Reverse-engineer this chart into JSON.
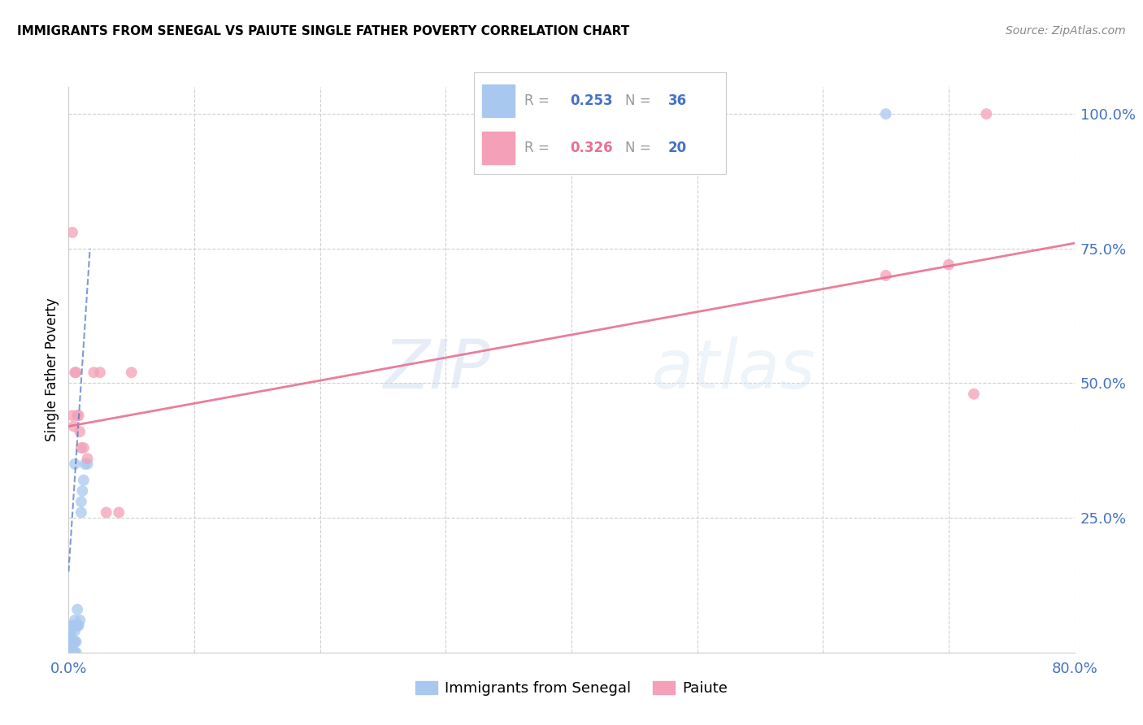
{
  "title": "IMMIGRANTS FROM SENEGAL VS PAIUTE SINGLE FATHER POVERTY CORRELATION CHART",
  "source": "Source: ZipAtlas.com",
  "ylabel": "Single Father Poverty",
  "color_blue": "#A8C8F0",
  "color_pink": "#F4A0B8",
  "color_blue_dark": "#4472C4",
  "color_pink_dark": "#E87090",
  "color_axis_labels": "#4472C4",
  "senegal_x": [
    0.0,
    0.0,
    0.0,
    0.0,
    0.0,
    0.002,
    0.002,
    0.002,
    0.002,
    0.002,
    0.003,
    0.003,
    0.003,
    0.003,
    0.004,
    0.004,
    0.004,
    0.005,
    0.005,
    0.005,
    0.005,
    0.006,
    0.006,
    0.006,
    0.007,
    0.007,
    0.008,
    0.009,
    0.01,
    0.01,
    0.011,
    0.012,
    0.013,
    0.015,
    0.65,
    0.005
  ],
  "senegal_y": [
    0.0,
    0.01,
    0.02,
    0.03,
    0.04,
    0.0,
    0.01,
    0.02,
    0.03,
    0.04,
    0.0,
    0.01,
    0.02,
    0.05,
    0.0,
    0.02,
    0.05,
    0.0,
    0.02,
    0.04,
    0.06,
    0.0,
    0.02,
    0.05,
    0.05,
    0.08,
    0.05,
    0.06,
    0.26,
    0.28,
    0.3,
    0.32,
    0.35,
    0.35,
    1.0,
    0.35
  ],
  "paiute_x": [
    0.003,
    0.004,
    0.005,
    0.006,
    0.007,
    0.008,
    0.009,
    0.01,
    0.012,
    0.015,
    0.02,
    0.025,
    0.03,
    0.04,
    0.05,
    0.65,
    0.7,
    0.72,
    0.73,
    0.003
  ],
  "paiute_y": [
    0.44,
    0.42,
    0.52,
    0.52,
    0.44,
    0.44,
    0.41,
    0.38,
    0.38,
    0.36,
    0.52,
    0.52,
    0.26,
    0.26,
    0.52,
    0.7,
    0.72,
    0.48,
    1.0,
    0.78
  ],
  "senegal_trend_x": [
    0.0,
    0.017
  ],
  "senegal_trend_y": [
    0.15,
    0.75
  ],
  "paiute_trend_x": [
    0.0,
    0.8
  ],
  "paiute_trend_y": [
    0.42,
    0.76
  ],
  "xlim": [
    0.0,
    0.8
  ],
  "ylim": [
    0.0,
    1.05
  ],
  "ygrid_vals": [
    0.25,
    0.5,
    0.75,
    1.0
  ],
  "xgrid_vals": [
    0.0,
    0.1,
    0.2,
    0.3,
    0.4,
    0.5,
    0.6,
    0.7,
    0.8
  ]
}
